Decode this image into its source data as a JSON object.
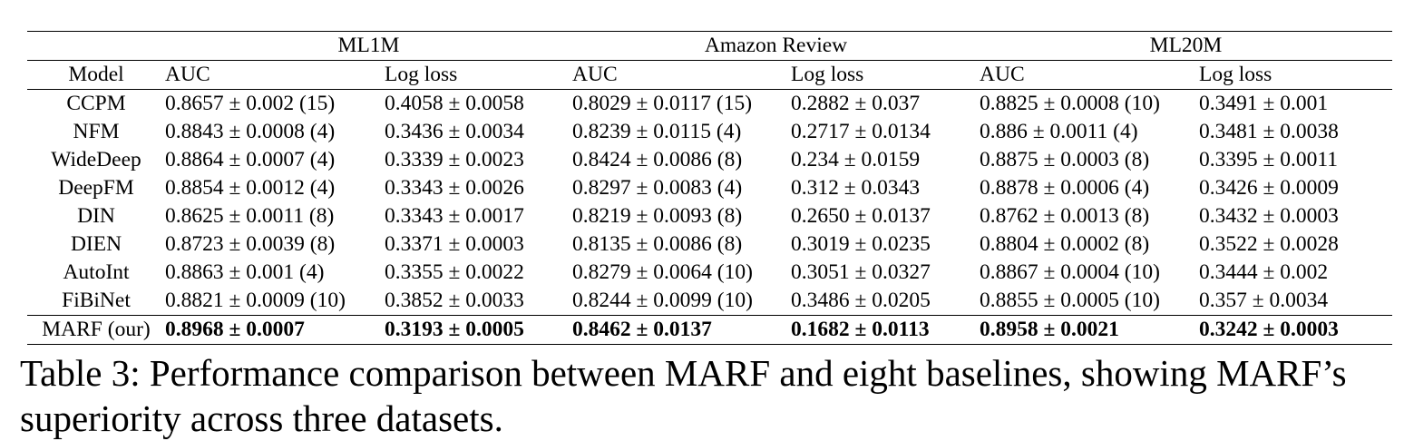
{
  "table": {
    "groups": [
      "ML1M",
      "Amazon Review",
      "ML20M"
    ],
    "columns": [
      "Model",
      "AUC",
      "Log loss",
      "AUC",
      "Log loss",
      "AUC",
      "Log loss"
    ],
    "rows": [
      {
        "model": "CCPM",
        "values": [
          "0.8657 ± 0.002 (15)",
          "0.4058 ± 0.0058",
          "0.8029 ± 0.0117 (15)",
          "0.2882 ± 0.037",
          "0.8825 ± 0.0008 (10)",
          "0.3491 ± 0.001"
        ]
      },
      {
        "model": "NFM",
        "values": [
          "0.8843 ± 0.0008 (4)",
          "0.3436 ± 0.0034",
          "0.8239 ± 0.0115 (4)",
          "0.2717 ± 0.0134",
          "0.886 ± 0.0011 (4)",
          "0.3481 ± 0.0038"
        ]
      },
      {
        "model": "WideDeep",
        "values": [
          "0.8864 ± 0.0007 (4)",
          "0.3339 ± 0.0023",
          "0.8424 ± 0.0086 (8)",
          "0.234 ± 0.0159",
          "0.8875 ± 0.0003 (8)",
          "0.3395 ± 0.0011"
        ]
      },
      {
        "model": "DeepFM",
        "values": [
          "0.8854 ± 0.0012 (4)",
          "0.3343 ± 0.0026",
          "0.8297 ± 0.0083 (4)",
          "0.312 ± 0.0343",
          "0.8878 ± 0.0006 (4)",
          "0.3426 ± 0.0009"
        ]
      },
      {
        "model": "DIN",
        "values": [
          "0.8625 ± 0.0011 (8)",
          "0.3343 ± 0.0017",
          "0.8219 ± 0.0093 (8)",
          "0.2650 ± 0.0137",
          "0.8762 ± 0.0013 (8)",
          "0.3432 ± 0.0003"
        ]
      },
      {
        "model": "DIEN",
        "values": [
          "0.8723 ± 0.0039 (8)",
          "0.3371 ± 0.0003",
          "0.8135 ± 0.0086 (8)",
          "0.3019 ± 0.0235",
          "0.8804 ± 0.0002 (8)",
          "0.3522 ± 0.0028"
        ]
      },
      {
        "model": "AutoInt",
        "values": [
          "0.8863 ± 0.001 (4)",
          "0.3355 ± 0.0022",
          "0.8279 ± 0.0064 (10)",
          "0.3051 ± 0.0327",
          "0.8867 ± 0.0004 (10)",
          "0.3444 ± 0.002"
        ]
      },
      {
        "model": "FiBiNet",
        "values": [
          "0.8821 ± 0.0009 (10)",
          "0.3852 ± 0.0033",
          "0.8244 ± 0.0099 (10)",
          "0.3486 ± 0.0205",
          "0.8855 ± 0.0005 (10)",
          "0.357 ± 0.0034"
        ]
      }
    ],
    "ours": {
      "model": "MARF (our)",
      "values": [
        "0.8968 ± 0.0007",
        "0.3193 ± 0.0005",
        "0.8462 ± 0.0137",
        "0.1682 ± 0.0113",
        "0.8958 ± 0.0021",
        "0.3242 ± 0.0003"
      ]
    }
  },
  "caption": "Table 3: Performance comparison between MARF and eight baselines, showing MARF’s superiority across three datasets."
}
